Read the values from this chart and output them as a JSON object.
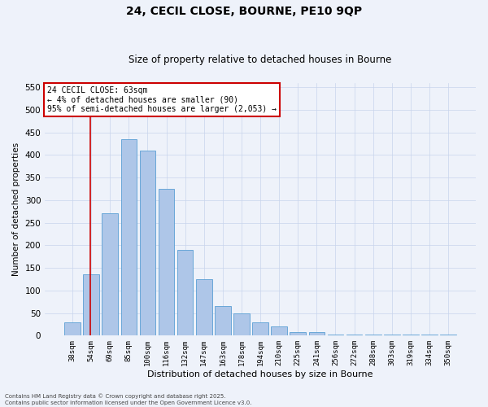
{
  "title_line1": "24, CECIL CLOSE, BOURNE, PE10 9QP",
  "title_line2": "Size of property relative to detached houses in Bourne",
  "xlabel": "Distribution of detached houses by size in Bourne",
  "ylabel": "Number of detached properties",
  "categories": [
    "38sqm",
    "54sqm",
    "69sqm",
    "85sqm",
    "100sqm",
    "116sqm",
    "132sqm",
    "147sqm",
    "163sqm",
    "178sqm",
    "194sqm",
    "210sqm",
    "225sqm",
    "241sqm",
    "256sqm",
    "272sqm",
    "288sqm",
    "303sqm",
    "319sqm",
    "334sqm",
    "350sqm"
  ],
  "values": [
    30,
    135,
    270,
    435,
    410,
    325,
    190,
    125,
    65,
    50,
    30,
    20,
    8,
    8,
    3,
    3,
    3,
    3,
    3,
    3,
    3
  ],
  "bar_color": "#aec6e8",
  "bar_edge_color": "#5a9fd4",
  "red_line_index": 1,
  "annotation_text": "24 CECIL CLOSE: 63sqm\n← 4% of detached houses are smaller (90)\n95% of semi-detached houses are larger (2,053) →",
  "annotation_box_color": "#ffffff",
  "annotation_box_edge": "#cc0000",
  "red_line_color": "#cc0000",
  "ylim": [
    0,
    560
  ],
  "yticks": [
    0,
    50,
    100,
    150,
    200,
    250,
    300,
    350,
    400,
    450,
    500,
    550
  ],
  "footer_line1": "Contains HM Land Registry data © Crown copyright and database right 2025.",
  "footer_line2": "Contains public sector information licensed under the Open Government Licence v3.0.",
  "bg_color": "#eef2fa",
  "grid_color": "#c8d4ec"
}
